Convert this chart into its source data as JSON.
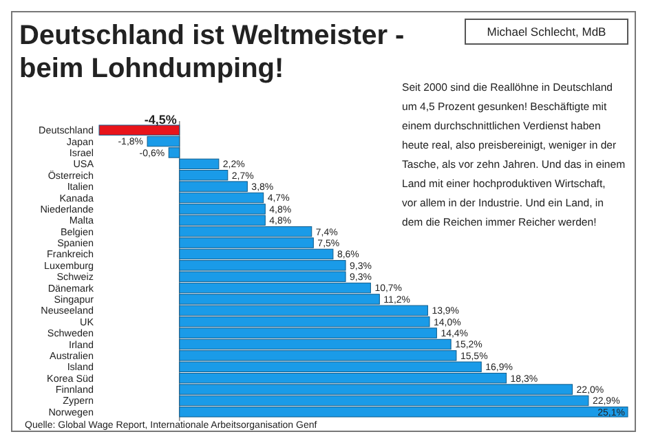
{
  "chart_data": {
    "type": "bar",
    "orientation": "horizontal",
    "title": "Deutschland ist Weltmeister -\nbeim Lohndumping!",
    "categories": [
      "Deutschland",
      "Japan",
      "Israel",
      "USA",
      "Österreich",
      "Italien",
      "Kanada",
      "Niederlande",
      "Malta",
      "Belgien",
      "Spanien",
      "Frankreich",
      "Luxemburg",
      "Schweiz",
      "Dänemark",
      "Singapur",
      "Neuseeland",
      "UK",
      "Schweden",
      "Irland",
      "Australien",
      "Island",
      "Korea Süd",
      "Finnland",
      "Zypern",
      "Norwegen"
    ],
    "values": [
      -4.5,
      -1.8,
      -0.6,
      2.2,
      2.7,
      3.8,
      4.7,
      4.8,
      4.8,
      7.4,
      7.5,
      8.6,
      9.3,
      9.3,
      10.7,
      11.2,
      13.9,
      14.0,
      14.4,
      15.2,
      15.5,
      16.9,
      18.3,
      22.0,
      22.9,
      25.1
    ],
    "value_labels": [
      "-4,5%",
      "-1,8%",
      "-0,6%",
      "2,2%",
      "2,7%",
      "3,8%",
      "4,7%",
      "4,8%",
      "4,8%",
      "7,4%",
      "7,5%",
      "8,6%",
      "9,3%",
      "9,3%",
      "10,7%",
      "11,2%",
      "13,9%",
      "14,0%",
      "14,4%",
      "15,2%",
      "15,5%",
      "16,9%",
      "18,3%",
      "22,0%",
      "22,9%",
      "25,1%"
    ],
    "colors": [
      "#e8141b",
      "#1a9be8",
      "#1a9be8",
      "#1a9be8",
      "#1a9be8",
      "#1a9be8",
      "#1a9be8",
      "#1a9be8",
      "#1a9be8",
      "#1a9be8",
      "#1a9be8",
      "#1a9be8",
      "#1a9be8",
      "#1a9be8",
      "#1a9be8",
      "#1a9be8",
      "#1a9be8",
      "#1a9be8",
      "#1a9be8",
      "#1a9be8",
      "#1a9be8",
      "#1a9be8",
      "#1a9be8",
      "#1a9be8",
      "#1a9be8",
      "#1a9be8"
    ],
    "annotations": [
      "Michael Schlecht, MdB",
      "Seit 2000 sind die Reallöhne in Deutschland\num 4,5 Prozent gesunken! Beschäftigte mit\neinem durchschnittlichen Verdienst haben\nheute real, also preisbereinigt, weniger in der\nTasche, als vor zehn Jahren. Und das in einem\nLand mit einer hochproduktiven Wirtschaft,\nvor allem in der Industrie. Und ein Land, in\ndem die Reichen immer Reicher werden!",
      "Quelle: Global Wage Report, Internationale Arbeitsorganisation Genf"
    ]
  }
}
